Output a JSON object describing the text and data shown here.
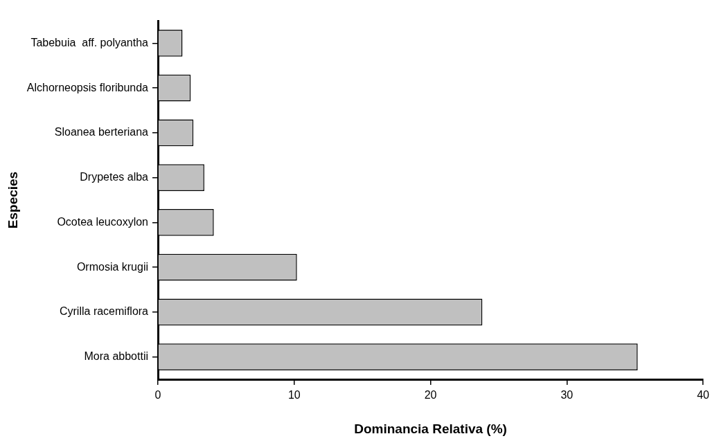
{
  "chart_data": {
    "type": "bar",
    "orientation": "horizontal",
    "xlabel": "Dominancia Relativa (%)",
    "ylabel": "Especies",
    "categories": [
      "Tabebuia  aff. polyantha",
      "Alchorneopsis floribunda",
      "Sloanea berteriana",
      "Drypetes alba",
      "Ocotea leucoxylon",
      "Ormosia krugii",
      "Cyrilla racemiflora",
      "Mora abbottii"
    ],
    "values": [
      1.8,
      2.4,
      2.6,
      3.4,
      4.1,
      10.2,
      23.8,
      35.2
    ],
    "color": "#c0c0c0",
    "xlim": [
      0,
      40
    ],
    "xticks": [
      0,
      10,
      20,
      30,
      40
    ],
    "grid": false,
    "legend": false
  }
}
